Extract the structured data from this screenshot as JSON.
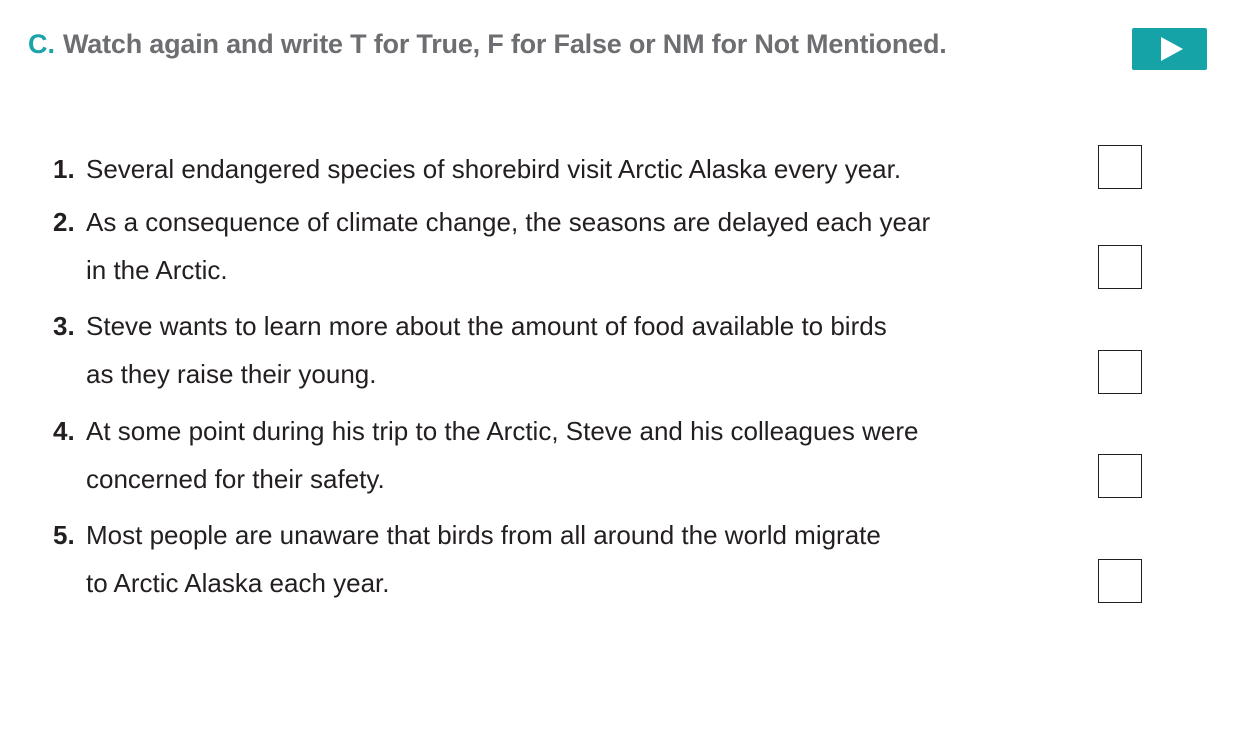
{
  "header": {
    "letter": "C.",
    "instruction": "Watch again and write T for True, F for False or NM for Not Mentioned."
  },
  "play_button": {
    "icon": "play-icon"
  },
  "items": [
    {
      "number": "1.",
      "lines": [
        "Several endangered species of shorebird visit Arctic Alaska every year."
      ]
    },
    {
      "number": "2.",
      "lines": [
        "As a consequence of climate change, the seasons are delayed each year",
        "in the Arctic."
      ]
    },
    {
      "number": "3.",
      "lines": [
        "Steve wants to learn more about the amount of food available to birds",
        "as they raise their young."
      ]
    },
    {
      "number": "4.",
      "lines": [
        "At some point during his trip to the Arctic, Steve and his colleagues were",
        "concerned for their safety."
      ]
    },
    {
      "number": "5.",
      "lines": [
        "Most people are unaware that birds from all around the world migrate",
        "to Arctic Alaska each year."
      ]
    }
  ]
}
